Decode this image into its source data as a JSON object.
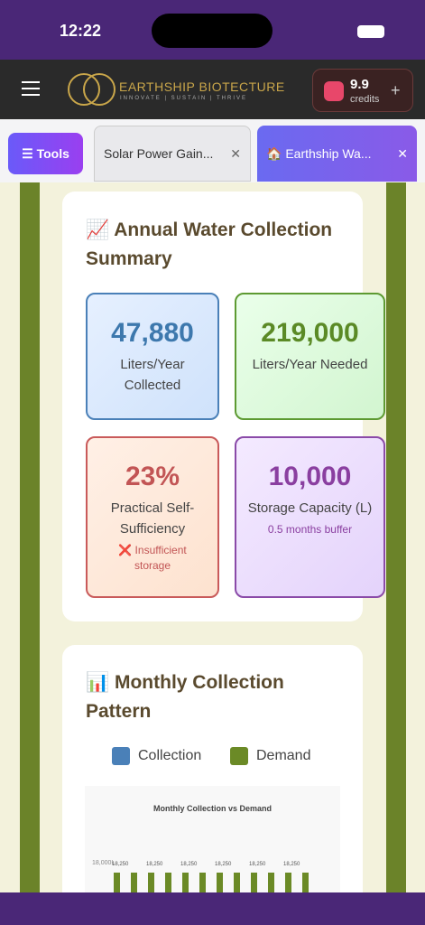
{
  "status": {
    "time": "12:22"
  },
  "header": {
    "brand": "EARTHSHIP BIOTECTURE",
    "tagline": "INNOVATE | SUSTAIN | THRIVE",
    "credits_value": "9.9",
    "credits_label": "credits",
    "add": "+"
  },
  "tabs": {
    "tools": "Tools",
    "items": [
      "Solar Power Gain...",
      "🏠 Earthship Wa..."
    ],
    "close": "✕"
  },
  "summary": {
    "title": "📈 Annual Water Collection Summary",
    "stats": [
      {
        "value": "47,880",
        "label": "Liters/Year Collected"
      },
      {
        "value": "219,000",
        "label": "Liters/Year Needed"
      },
      {
        "value": "23%",
        "label": "Practical Self-Sufficiency",
        "note": "❌ Insufficient storage"
      },
      {
        "value": "10,000",
        "label": "Storage Capacity (L)",
        "note": "0.5 months buffer"
      }
    ]
  },
  "pattern": {
    "title": "📊 Monthly Collection Pattern",
    "legend": [
      "Collection",
      "Demand"
    ],
    "chart": {
      "title": "Monthly Collection vs Demand",
      "ytick": "18,000L",
      "bar_label": "18,250"
    }
  }
}
